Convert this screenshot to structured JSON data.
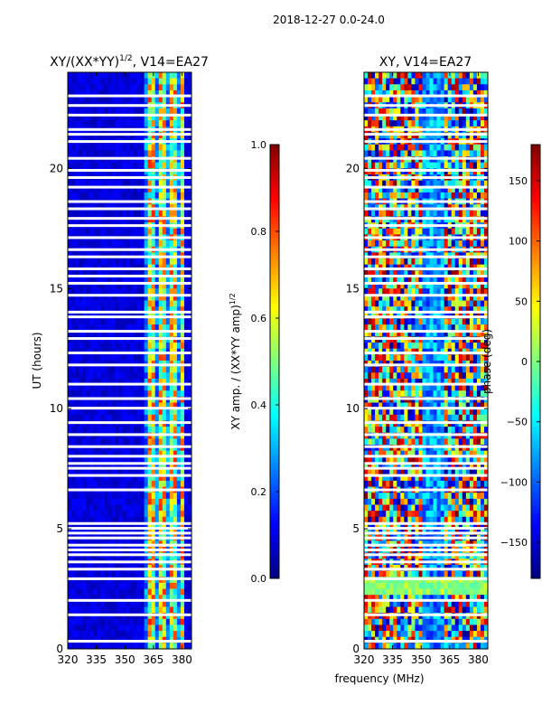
{
  "suptitle": "2018-12-27 0.0-24.0",
  "xlabel": "frequency (MHz)",
  "colormap": [
    "#00007f",
    "#0000ff",
    "#007fff",
    "#00ffff",
    "#7fff7f",
    "#ffff00",
    "#ff7f00",
    "#ff0000",
    "#7f0000"
  ],
  "chart_data": [
    {
      "type": "heatmap",
      "title_main": "XY/(XX*YY)",
      "title_sup": "1/2",
      "title_tail": ", V14=EA27",
      "xlabel": "",
      "ylabel": "UT (hours)",
      "xlim": [
        320,
        385
      ],
      "ylim": [
        0,
        24
      ],
      "xticks": [
        "320",
        "335",
        "350",
        "365",
        "380"
      ],
      "xtick_values": [
        320,
        335,
        350,
        365,
        380
      ],
      "yticks": [
        "0",
        "5",
        "10",
        "15",
        "20"
      ],
      "ytick_values": [
        0,
        5,
        10,
        15,
        20
      ],
      "colorbar": {
        "label_main": "XY amp. / (XX*YY amp)",
        "label_sup": "1/2",
        "range": [
          0.0,
          1.0
        ],
        "ticks": [
          "0.0",
          "0.2",
          "0.4",
          "0.6",
          "0.8",
          "1.0"
        ],
        "tick_values": [
          0.0,
          0.2,
          0.4,
          0.6,
          0.8,
          1.0
        ]
      }
    },
    {
      "type": "heatmap",
      "title_main": "XY, V14=EA27",
      "xlabel": "frequency (MHz)",
      "ylabel": "",
      "xlim": [
        320,
        385
      ],
      "ylim": [
        0,
        24
      ],
      "xticks": [
        "320",
        "335",
        "350",
        "365",
        "380"
      ],
      "xtick_values": [
        320,
        335,
        350,
        365,
        380
      ],
      "yticks": [
        "0",
        "5",
        "10",
        "15",
        "20"
      ],
      "ytick_values": [
        0,
        5,
        10,
        15,
        20
      ],
      "colorbar": {
        "label_main": "phase (deg)",
        "range": [
          -180,
          180
        ],
        "ticks": [
          "−150",
          "−100",
          "−50",
          "0",
          "50",
          "100",
          "150"
        ],
        "tick_values": [
          -150,
          -100,
          -50,
          0,
          50,
          100,
          150
        ]
      }
    }
  ],
  "gaps_hours": [
    0.3,
    1.4,
    2.0,
    2.9,
    3.3,
    3.6,
    3.9,
    4.1,
    4.3,
    4.6,
    4.8,
    5.0,
    5.2,
    6.6,
    7.2,
    7.5,
    7.7,
    8.0,
    8.4,
    8.9,
    9.4,
    10.0,
    10.4,
    11.0,
    11.8,
    12.3,
    12.9,
    13.2,
    13.8,
    14.0,
    14.7,
    15.2,
    15.5,
    15.8,
    16.3,
    16.6,
    17.1,
    17.6,
    17.9,
    18.3,
    18.6,
    19.2,
    19.6,
    19.9,
    20.4,
    21.1,
    21.4,
    21.6,
    22.2,
    22.6,
    23.0
  ]
}
